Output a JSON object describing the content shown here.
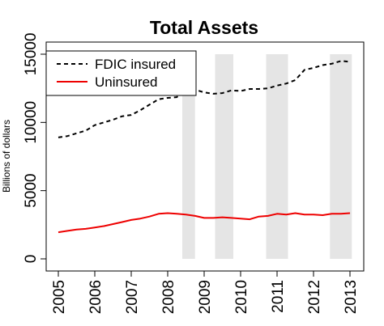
{
  "chart_data": {
    "type": "line",
    "title": "Total Assets",
    "xlabel": "",
    "ylabel": "Billions of dollars",
    "xlim": [
      2005,
      2013
    ],
    "ylim": [
      0,
      15000
    ],
    "x_ticks": [
      "2005",
      "2006",
      "2007",
      "2008",
      "2009",
      "2010",
      "2011",
      "2012",
      "2013"
    ],
    "y_ticks": [
      "0",
      "5000",
      "10000",
      "15000"
    ],
    "grid": false,
    "legend_position": "top-left",
    "shaded_periods": [
      [
        2008.4,
        2008.75
      ],
      [
        2009.3,
        2009.8
      ],
      [
        2010.7,
        2011.3
      ],
      [
        2012.45,
        2013.05
      ]
    ],
    "x": [
      2005.0,
      2005.25,
      2005.5,
      2005.75,
      2006.0,
      2006.25,
      2006.5,
      2006.75,
      2007.0,
      2007.25,
      2007.5,
      2007.75,
      2008.0,
      2008.25,
      2008.5,
      2008.75,
      2009.0,
      2009.25,
      2009.5,
      2009.75,
      2010.0,
      2010.25,
      2010.5,
      2010.75,
      2011.0,
      2011.25,
      2011.5,
      2011.75,
      2012.0,
      2012.25,
      2012.5,
      2012.75,
      2013.0
    ],
    "series": [
      {
        "name": "FDIC insured",
        "color": "#000000",
        "style": "dashed",
        "values": [
          8900,
          9000,
          9200,
          9400,
          9800,
          10000,
          10200,
          10450,
          10550,
          10900,
          11300,
          11700,
          11800,
          11850,
          12550,
          12400,
          12200,
          12100,
          12150,
          12350,
          12300,
          12450,
          12450,
          12500,
          12700,
          12850,
          13100,
          13850,
          14000,
          14200,
          14300,
          14500,
          14450
        ]
      },
      {
        "name": "Uninsured",
        "color": "#ee0000",
        "style": "solid",
        "values": [
          1950,
          2050,
          2150,
          2200,
          2300,
          2400,
          2550,
          2700,
          2850,
          2950,
          3100,
          3300,
          3350,
          3300,
          3250,
          3150,
          3000,
          3000,
          3050,
          3000,
          2950,
          2900,
          3100,
          3150,
          3300,
          3250,
          3350,
          3250,
          3250,
          3200,
          3300,
          3300,
          3350
        ]
      }
    ]
  }
}
